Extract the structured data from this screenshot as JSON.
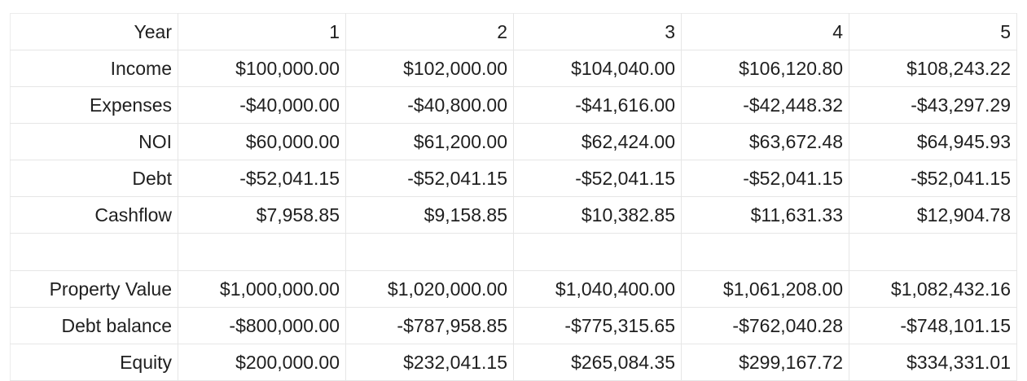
{
  "table": {
    "rows": [
      {
        "label": "Year",
        "values": [
          "1",
          "2",
          "3",
          "4",
          "5"
        ]
      },
      {
        "label": "Income",
        "values": [
          "$100,000.00",
          "$102,000.00",
          "$104,040.00",
          "$106,120.80",
          "$108,243.22"
        ]
      },
      {
        "label": "Expenses",
        "values": [
          "-$40,000.00",
          "-$40,800.00",
          "-$41,616.00",
          "-$42,448.32",
          "-$43,297.29"
        ]
      },
      {
        "label": "NOI",
        "values": [
          "$60,000.00",
          "$61,200.00",
          "$62,424.00",
          "$63,672.48",
          "$64,945.93"
        ]
      },
      {
        "label": "Debt",
        "values": [
          "-$52,041.15",
          "-$52,041.15",
          "-$52,041.15",
          "-$52,041.15",
          "-$52,041.15"
        ]
      },
      {
        "label": "Cashflow",
        "values": [
          "$7,958.85",
          "$9,158.85",
          "$10,382.85",
          "$11,631.33",
          "$12,904.78"
        ]
      },
      {
        "label": "",
        "values": [
          "",
          "",
          "",
          "",
          ""
        ]
      },
      {
        "label": "Property Value",
        "values": [
          "$1,000,000.00",
          "$1,020,000.00",
          "$1,040,400.00",
          "$1,061,208.00",
          "$1,082,432.16"
        ]
      },
      {
        "label": "Debt balance",
        "values": [
          "-$800,000.00",
          "-$787,958.85",
          "-$775,315.65",
          "-$762,040.28",
          "-$748,101.15"
        ]
      },
      {
        "label": "Equity",
        "values": [
          "$200,000.00",
          "$232,041.15",
          "$265,084.35",
          "$299,167.72",
          "$334,331.01"
        ]
      }
    ]
  }
}
